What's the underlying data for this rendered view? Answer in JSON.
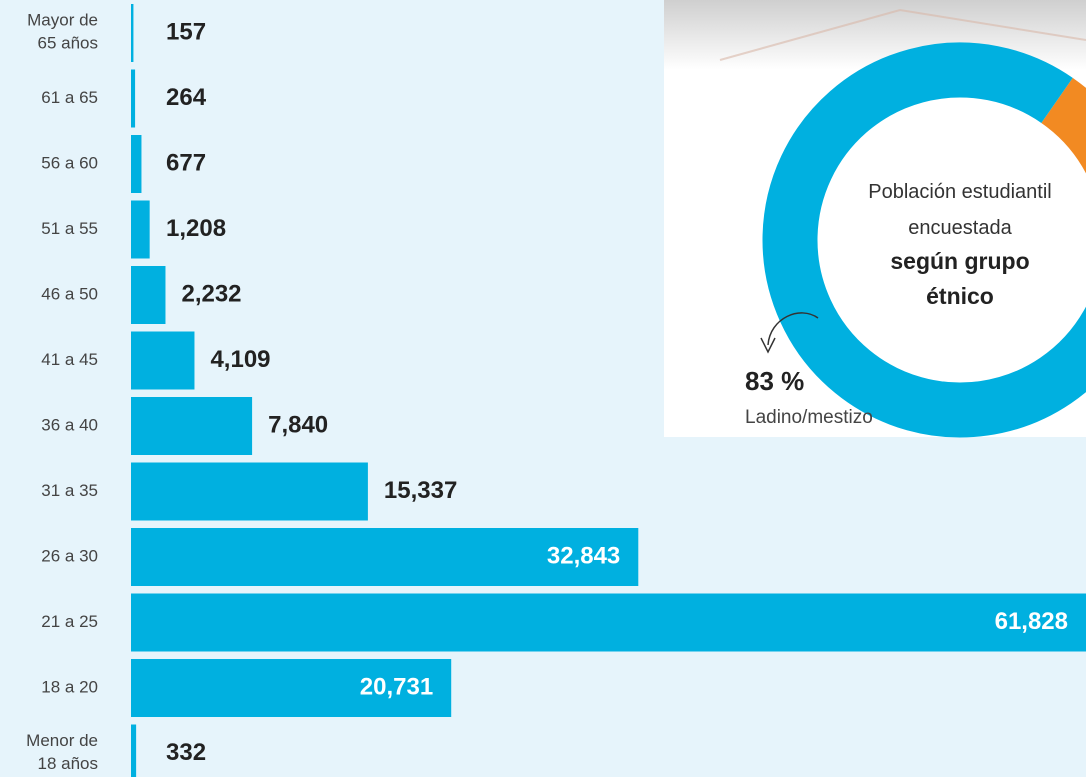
{
  "chart_data": [
    {
      "type": "bar",
      "categories": [
        "Mayor de\n65 años",
        "61 a 65",
        "56 a 60",
        "51 a 55",
        "46 a 50",
        "41 a 45",
        "36 a 40",
        "31 a 35",
        "26 a 30",
        "21 a 25",
        "18 a 20",
        "Menor de\n18 años"
      ],
      "values": [
        157,
        264,
        677,
        1208,
        2232,
        4109,
        7840,
        15337,
        32843,
        61828,
        20731,
        332
      ],
      "value_labels": [
        "157",
        "264",
        "677",
        "1,208",
        "2,232",
        "4,109",
        "7,840",
        "15,337",
        "32,843",
        "61,828",
        "20,731",
        "332"
      ],
      "color": "#00b0e0"
    },
    {
      "type": "pie",
      "title": "Población estudiantil encuestada",
      "subtitle": "según grupo étnico",
      "categories": [
        "Ladino/mestizo"
      ],
      "values": [
        83
      ],
      "value_labels": [
        "83 %"
      ],
      "colors": [
        "#00b0e0"
      ],
      "other_color": "#f28a22"
    }
  ]
}
